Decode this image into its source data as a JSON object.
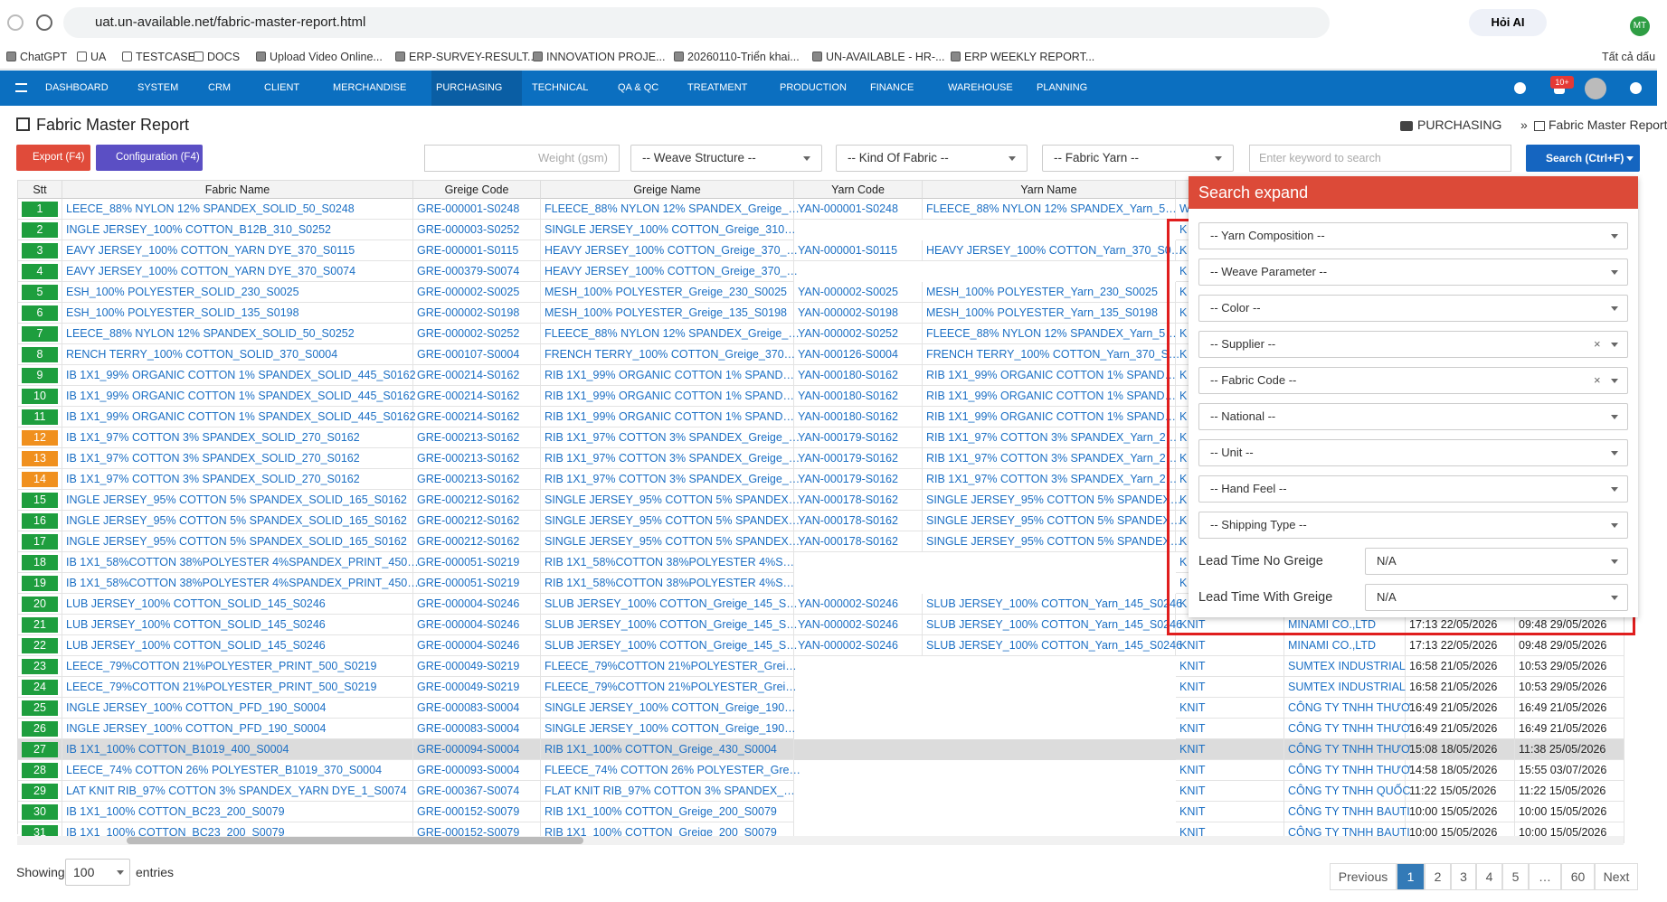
{
  "browser": {
    "url": "uat.un-available.net/fabric-master-report.html",
    "ai_button": "Hỏi AI",
    "avatar": "MT",
    "bookmarks": [
      "ChatGPT",
      "UA",
      "TESTCASE",
      "DOCS",
      "Upload Video Online...",
      "ERP-SURVEY-RESULT...",
      "INNOVATION PROJE...",
      "20260110-Triển khai...",
      "UN-AVAILABLE - HR-...",
      "ERP WEEKLY REPORT..."
    ],
    "all_bookmarks": "Tất cả dấu"
  },
  "nav": {
    "items": [
      "DASHBOARD",
      "SYSTEM",
      "CRM",
      "CLIENT",
      "MERCHANDISE",
      "PURCHASING",
      "TECHNICAL",
      "QA & QC",
      "TREATMENT",
      "PRODUCTION",
      "FINANCE",
      "WAREHOUSE",
      "PLANNING"
    ],
    "active_index": 5,
    "badge": "10+"
  },
  "header": {
    "title": "Fabric Master Report",
    "breadcrumb": [
      "PURCHASING",
      "»",
      "Fabric Master Report"
    ]
  },
  "toolbar": {
    "buttons": [
      "Export (F4)",
      "Configuration (F4)"
    ],
    "weight": "Weight (gsm)",
    "selects": [
      "-- Weave Structure --",
      "-- Kind Of Fabric --",
      "-- Fabric Yarn --"
    ],
    "keyword": "Enter keyword to search",
    "search": "Search (Ctrl+F)"
  },
  "table": {
    "columns": [
      "Stt",
      "Fabric Name",
      "Greige Code",
      "Greige Name",
      "Yarn Code",
      "Yarn Name"
    ],
    "rows": [
      {
        "stt": 1,
        "color": "#1e9e3e",
        "cells": [
          "LEECE_88% NYLON 12% SPANDEX_SOLID_50_S0248",
          "GRE-000001-S0248",
          "FLEECE_88% NYLON 12% SPANDEX_Greige_…",
          "YAN-000001-S0248",
          "FLEECE_88% NYLON 12% SPANDEX_Yarn_5…",
          "W"
        ]
      },
      {
        "stt": 2,
        "color": "#1e9e3e",
        "cells": [
          "INGLE JERSEY_100% COTTON_B12B_310_S0252",
          "GRE-000003-S0252",
          "SINGLE JERSEY_100% COTTON_Greige_310…",
          null,
          null,
          "K"
        ]
      },
      {
        "stt": 3,
        "color": "#1e9e3e",
        "cells": [
          "EAVY JERSEY_100% COTTON_YARN DYE_370_S0115",
          "GRE-000001-S0115",
          "HEAVY JERSEY_100% COTTON_Greige_370_…",
          "YAN-000001-S0115",
          "HEAVY JERSEY_100% COTTON_Yarn_370_S0…",
          "K"
        ]
      },
      {
        "stt": 4,
        "color": "#1e9e3e",
        "cells": [
          "EAVY JERSEY_100% COTTON_YARN DYE_370_S0074",
          "GRE-000379-S0074",
          "HEAVY JERSEY_100% COTTON_Greige_370_…",
          null,
          null,
          "K"
        ]
      },
      {
        "stt": 5,
        "color": "#1e9e3e",
        "cells": [
          "ESH_100% POLYESTER_SOLID_230_S0025",
          "GRE-000002-S0025",
          "MESH_100% POLYESTER_Greige_230_S0025",
          "YAN-000002-S0025",
          "MESH_100% POLYESTER_Yarn_230_S0025",
          "K"
        ]
      },
      {
        "stt": 6,
        "color": "#1e9e3e",
        "cells": [
          "ESH_100% POLYESTER_SOLID_135_S0198",
          "GRE-000002-S0198",
          "MESH_100% POLYESTER_Greige_135_S0198",
          "YAN-000002-S0198",
          "MESH_100% POLYESTER_Yarn_135_S0198",
          "K"
        ]
      },
      {
        "stt": 7,
        "color": "#1e9e3e",
        "cells": [
          "LEECE_88% NYLON 12% SPANDEX_SOLID_50_S0252",
          "GRE-000002-S0252",
          "FLEECE_88% NYLON 12% SPANDEX_Greige_…",
          "YAN-000002-S0252",
          "FLEECE_88% NYLON 12% SPANDEX_Yarn_5…",
          "K"
        ]
      },
      {
        "stt": 8,
        "color": "#1e9e3e",
        "cells": [
          "RENCH TERRY_100% COTTON_SOLID_370_S0004",
          "GRE-000107-S0004",
          "FRENCH TERRY_100% COTTON_Greige_370…",
          "YAN-000126-S0004",
          "FRENCH TERRY_100% COTTON_Yarn_370_S…",
          "K"
        ]
      },
      {
        "stt": 9,
        "color": "#1e9e3e",
        "cells": [
          "IB 1X1_99% ORGANIC COTTON 1% SPANDEX_SOLID_445_S0162",
          "GRE-000214-S0162",
          "RIB 1X1_99% ORGANIC COTTON 1% SPAND…",
          "YAN-000180-S0162",
          "RIB 1X1_99% ORGANIC COTTON 1% SPAND…",
          "K"
        ]
      },
      {
        "stt": 10,
        "color": "#1e9e3e",
        "cells": [
          "IB 1X1_99% ORGANIC COTTON 1% SPANDEX_SOLID_445_S0162",
          "GRE-000214-S0162",
          "RIB 1X1_99% ORGANIC COTTON 1% SPAND…",
          "YAN-000180-S0162",
          "RIB 1X1_99% ORGANIC COTTON 1% SPAND…",
          "K"
        ]
      },
      {
        "stt": 11,
        "color": "#1e9e3e",
        "cells": [
          "IB 1X1_99% ORGANIC COTTON 1% SPANDEX_SOLID_445_S0162",
          "GRE-000214-S0162",
          "RIB 1X1_99% ORGANIC COTTON 1% SPAND…",
          "YAN-000180-S0162",
          "RIB 1X1_99% ORGANIC COTTON 1% SPAND…",
          "K"
        ]
      },
      {
        "stt": 12,
        "color": "#f0901e",
        "cells": [
          "IB 1X1_97% COTTON 3% SPANDEX_SOLID_270_S0162",
          "GRE-000213-S0162",
          "RIB 1X1_97% COTTON 3% SPANDEX_Greige_…",
          "YAN-000179-S0162",
          "RIB 1X1_97% COTTON 3% SPANDEX_Yarn_2…",
          "K"
        ]
      },
      {
        "stt": 13,
        "color": "#f0901e",
        "cells": [
          "IB 1X1_97% COTTON 3% SPANDEX_SOLID_270_S0162",
          "GRE-000213-S0162",
          "RIB 1X1_97% COTTON 3% SPANDEX_Greige_…",
          "YAN-000179-S0162",
          "RIB 1X1_97% COTTON 3% SPANDEX_Yarn_2…",
          "K"
        ]
      },
      {
        "stt": 14,
        "color": "#f0901e",
        "cells": [
          "IB 1X1_97% COTTON 3% SPANDEX_SOLID_270_S0162",
          "GRE-000213-S0162",
          "RIB 1X1_97% COTTON 3% SPANDEX_Greige_…",
          "YAN-000179-S0162",
          "RIB 1X1_97% COTTON 3% SPANDEX_Yarn_2…",
          "K"
        ]
      },
      {
        "stt": 15,
        "color": "#1e9e3e",
        "cells": [
          "INGLE JERSEY_95% COTTON 5% SPANDEX_SOLID_165_S0162",
          "GRE-000212-S0162",
          "SINGLE JERSEY_95% COTTON 5% SPANDEX…",
          "YAN-000178-S0162",
          "SINGLE JERSEY_95% COTTON 5% SPANDEX…",
          "K"
        ]
      },
      {
        "stt": 16,
        "color": "#1e9e3e",
        "cells": [
          "INGLE JERSEY_95% COTTON 5% SPANDEX_SOLID_165_S0162",
          "GRE-000212-S0162",
          "SINGLE JERSEY_95% COTTON 5% SPANDEX…",
          "YAN-000178-S0162",
          "SINGLE JERSEY_95% COTTON 5% SPANDEX…",
          "K"
        ]
      },
      {
        "stt": 17,
        "color": "#1e9e3e",
        "cells": [
          "INGLE JERSEY_95% COTTON 5% SPANDEX_SOLID_165_S0162",
          "GRE-000212-S0162",
          "SINGLE JERSEY_95% COTTON 5% SPANDEX…",
          "YAN-000178-S0162",
          "SINGLE JERSEY_95% COTTON 5% SPANDEX…",
          "K"
        ]
      },
      {
        "stt": 18,
        "color": "#1e9e3e",
        "cells": [
          "IB 1X1_58%COTTON 38%POLYESTER 4%SPANDEX_PRINT_450…",
          "GRE-000051-S0219",
          "RIB 1X1_58%COTTON 38%POLYESTER 4%S…",
          null,
          null,
          "K"
        ]
      },
      {
        "stt": 19,
        "color": "#1e9e3e",
        "cells": [
          "IB 1X1_58%COTTON 38%POLYESTER 4%SPANDEX_PRINT_450…",
          "GRE-000051-S0219",
          "RIB 1X1_58%COTTON 38%POLYESTER 4%S…",
          null,
          null,
          "K"
        ]
      },
      {
        "stt": 20,
        "color": "#1e9e3e",
        "cells": [
          "LUB JERSEY_100% COTTON_SOLID_145_S0246",
          "GRE-000004-S0246",
          "SLUB JERSEY_100% COTTON_Greige_145_S…",
          "YAN-000002-S0246",
          "SLUB JERSEY_100% COTTON_Yarn_145_S0246",
          "K"
        ]
      },
      {
        "stt": 21,
        "color": "#1e9e3e",
        "cells": [
          "LUB JERSEY_100% COTTON_SOLID_145_S0246",
          "GRE-000004-S0246",
          "SLUB JERSEY_100% COTTON_Greige_145_S…",
          "YAN-000002-S0246",
          "SLUB JERSEY_100% COTTON_Yarn_145_S0246",
          "KNIT",
          "MINAMI CO.,LTD",
          "17:13 22/05/2026",
          "09:48 29/05/2026"
        ]
      },
      {
        "stt": 22,
        "color": "#1e9e3e",
        "cells": [
          "LUB JERSEY_100% COTTON_SOLID_145_S0246",
          "GRE-000004-S0246",
          "SLUB JERSEY_100% COTTON_Greige_145_S…",
          "YAN-000002-S0246",
          "SLUB JERSEY_100% COTTON_Yarn_145_S0246",
          "KNIT",
          "MINAMI CO.,LTD",
          "17:13 22/05/2026",
          "09:48 29/05/2026"
        ]
      },
      {
        "stt": 23,
        "color": "#1e9e3e",
        "cells": [
          "LEECE_79%COTTON 21%POLYESTER_PRINT_500_S0219",
          "GRE-000049-S0219",
          "FLEECE_79%COTTON 21%POLYESTER_Grei…",
          null,
          null,
          "KNIT",
          "SUMTEX INDUSTRIAL",
          "16:58 21/05/2026",
          "10:53 29/05/2026"
        ]
      },
      {
        "stt": 24,
        "color": "#1e9e3e",
        "cells": [
          "LEECE_79%COTTON 21%POLYESTER_PRINT_500_S0219",
          "GRE-000049-S0219",
          "FLEECE_79%COTTON 21%POLYESTER_Grei…",
          null,
          null,
          "KNIT",
          "SUMTEX INDUSTRIAL",
          "16:58 21/05/2026",
          "10:53 29/05/2026"
        ]
      },
      {
        "stt": 25,
        "color": "#1e9e3e",
        "cells": [
          "INGLE JERSEY_100% COTTON_PFD_190_S0004",
          "GRE-000083-S0004",
          "SINGLE JERSEY_100% COTTON_Greige_190…",
          null,
          null,
          "KNIT",
          "CÔNG TY TNHH THƯƠ",
          "16:49 21/05/2026",
          "16:49 21/05/2026"
        ]
      },
      {
        "stt": 26,
        "color": "#1e9e3e",
        "cells": [
          "INGLE JERSEY_100% COTTON_PFD_190_S0004",
          "GRE-000083-S0004",
          "SINGLE JERSEY_100% COTTON_Greige_190…",
          null,
          null,
          "KNIT",
          "CÔNG TY TNHH THƯƠ",
          "16:49 21/05/2026",
          "16:49 21/05/2026"
        ]
      },
      {
        "stt": 27,
        "color": "#1e9e3e",
        "selected": true,
        "cells": [
          "IB 1X1_100% COTTON_B1019_400_S0004",
          "GRE-000094-S0004",
          "RIB 1X1_100% COTTON_Greige_430_S0004",
          null,
          null,
          "KNIT",
          "CÔNG TY TNHH THƯƠ",
          "15:08 18/05/2026",
          "11:38 25/05/2026"
        ]
      },
      {
        "stt": 28,
        "color": "#1e9e3e",
        "cells": [
          "LEECE_74% COTTON 26% POLYESTER_B1019_370_S0004",
          "GRE-000093-S0004",
          "FLEECE_74% COTTON 26% POLYESTER_Gre…",
          null,
          null,
          "KNIT",
          "CÔNG TY TNHH THƯƠ",
          "14:58 18/05/2026",
          "15:55 03/07/2026"
        ]
      },
      {
        "stt": 29,
        "color": "#1e9e3e",
        "cells": [
          "LAT KNIT RIB_97% COTTON 3% SPANDEX_YARN DYE_1_S0074",
          "GRE-000367-S0074",
          "FLAT KNIT RIB_97% COTTON 3% SPANDEX_…",
          null,
          null,
          "KNIT",
          "CÔNG TY TNHH QUỐC",
          "11:22 15/05/2026",
          "11:22 15/05/2026"
        ]
      },
      {
        "stt": 30,
        "color": "#1e9e3e",
        "cells": [
          "IB 1X1_100% COTTON_BC23_200_S0079",
          "GRE-000152-S0079",
          "RIB 1X1_100% COTTON_Greige_200_S0079",
          null,
          null,
          "KNIT",
          "CÔNG TY TNHH BAUTI",
          "10:00 15/05/2026",
          "10:00 15/05/2026"
        ]
      },
      {
        "stt": 31,
        "color": "#1e9e3e",
        "cells": [
          "IB 1X1_100% COTTON_BC23_200_S0079",
          "GRE-000152-S0079",
          "RIB 1X1_100% COTTON_Greige_200_S0079",
          null,
          null,
          "KNIT",
          "CÔNG TY TNHH BAUTI",
          "10:00 15/05/2026",
          "10:00 15/05/2026"
        ]
      }
    ]
  },
  "search_panel": {
    "title": "Search expand",
    "selects": [
      {
        "label": "-- Yarn Composition --"
      },
      {
        "label": "-- Weave Parameter --"
      },
      {
        "label": "-- Color --"
      },
      {
        "label": "-- Supplier --",
        "clear": "×"
      },
      {
        "label": "-- Fabric Code --",
        "clear": "×"
      },
      {
        "label": "-- National --"
      },
      {
        "label": "-- Unit --"
      },
      {
        "label": "-- Hand Feel --"
      },
      {
        "label": "-- Shipping Type --"
      }
    ],
    "lead_times": [
      {
        "label": "Lead Time No Greige",
        "value": "N/A"
      },
      {
        "label": "Lead Time With Greige",
        "value": "N/A"
      }
    ]
  },
  "footer": {
    "showing": "Showing",
    "page_size": "100",
    "entries": "entries",
    "pagination": [
      "Previous",
      "1",
      "2",
      "3",
      "4",
      "5",
      "…",
      "60",
      "Next"
    ],
    "active_index": 1
  }
}
